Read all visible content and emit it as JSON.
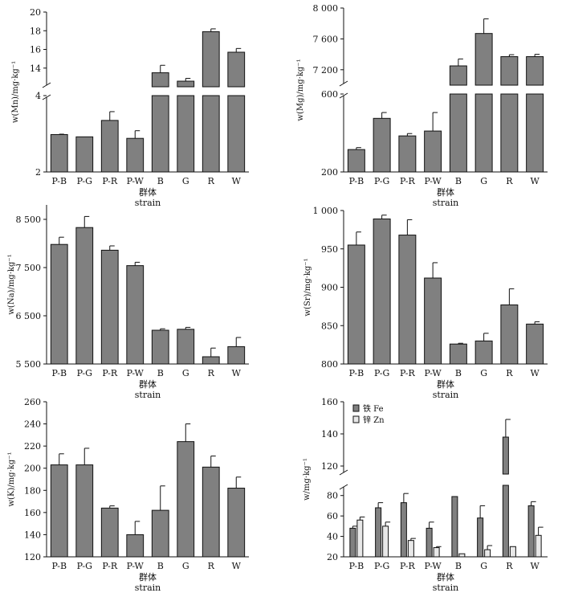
{
  "chart_data": [
    {
      "type": "bar",
      "ylabel": "w(Mn)/mg·kg⁻¹",
      "xlabel_zh": "群体",
      "xlabel_en": "strain",
      "categories": [
        "P-B",
        "P-G",
        "P-R",
        "P-W",
        "B",
        "G",
        "R",
        "W"
      ],
      "values": [
        2.98,
        2.92,
        3.35,
        2.88,
        13.5,
        12.6,
        17.9,
        15.7
      ],
      "errors": [
        0.01,
        0.0,
        0.23,
        0.2,
        0.8,
        0.3,
        0.3,
        0.4
      ],
      "axis_break": true,
      "lower_ylim": [
        2,
        4
      ],
      "upper_ylim": [
        12,
        20
      ],
      "lower_ticks": [
        "2",
        "4"
      ],
      "upper_ticks": [
        "14",
        "16",
        "18",
        "20"
      ]
    },
    {
      "type": "bar",
      "ylabel": "w(Mg)/mg·kg⁻¹",
      "xlabel_zh": "群体",
      "xlabel_en": "strain",
      "categories": [
        "P-B",
        "P-G",
        "P-R",
        "P-W",
        "B",
        "G",
        "R",
        "W"
      ],
      "values": [
        315,
        475,
        385,
        410,
        7250,
        7670,
        7370,
        7370
      ],
      "errors": [
        10,
        30,
        12,
        95,
        90,
        190,
        25,
        30
      ],
      "axis_break": true,
      "lower_ylim": [
        200,
        600
      ],
      "upper_ylim": [
        7000,
        8000
      ],
      "lower_ticks": [
        "200",
        "600"
      ],
      "upper_ticks": [
        "7 200",
        "7 600",
        "8 000"
      ]
    },
    {
      "type": "bar",
      "ylabel": "w(Na)/mg·kg⁻¹",
      "xlabel_zh": "群体",
      "xlabel_en": "strain",
      "categories": [
        "P-B",
        "P-G",
        "P-R",
        "P-W",
        "B",
        "G",
        "R",
        "W"
      ],
      "values": [
        7980,
        8330,
        7860,
        7540,
        6200,
        6220,
        5650,
        5860
      ],
      "errors": [
        150,
        230,
        90,
        70,
        30,
        40,
        180,
        190
      ],
      "ylim": [
        5500,
        8800
      ],
      "yticks": [
        5500,
        6500,
        7500,
        8500
      ],
      "ytick_labels": [
        "5 500",
        "6 500",
        "7 500",
        "8 500"
      ]
    },
    {
      "type": "bar",
      "ylabel": "w(Sr)/mg·kg⁻¹",
      "xlabel_zh": "群体",
      "xlabel_en": "strain",
      "categories": [
        "P-B",
        "P-G",
        "P-R",
        "P-W",
        "B",
        "G",
        "R",
        "W"
      ],
      "values": [
        955,
        989,
        968,
        912,
        826,
        830,
        877,
        852
      ],
      "errors": [
        17,
        5,
        20,
        20,
        1,
        10,
        21,
        3
      ],
      "ylim": [
        800,
        1000
      ],
      "yticks": [
        800,
        850,
        900,
        950,
        1000
      ],
      "ytick_labels": [
        "800",
        "850",
        "900",
        "950",
        "1 000"
      ]
    },
    {
      "type": "bar",
      "ylabel": "w(K)/mg·kg⁻¹",
      "xlabel_zh": "群体",
      "xlabel_en": "strain",
      "categories": [
        "P-B",
        "P-G",
        "P-R",
        "P-W",
        "B",
        "G",
        "R",
        "W"
      ],
      "values": [
        203,
        203,
        164,
        140,
        162,
        224,
        201,
        182
      ],
      "errors": [
        10,
        15,
        2,
        12,
        22,
        16,
        10,
        10
      ],
      "ylim": [
        120,
        260
      ],
      "yticks": [
        120,
        140,
        160,
        180,
        200,
        220,
        240,
        260
      ],
      "ytick_labels": [
        "120",
        "140",
        "160",
        "180",
        "200",
        "220",
        "240",
        "260"
      ]
    },
    {
      "type": "bar",
      "ylabel": "w/mg·kg⁻¹",
      "xlabel_zh": "群体",
      "xlabel_en": "strain",
      "categories": [
        "P-B",
        "P-G",
        "P-R",
        "P-W",
        "B",
        "G",
        "R",
        "W"
      ],
      "axis_break": true,
      "lower_ylim": [
        20,
        90
      ],
      "upper_ylim": [
        115,
        160
      ],
      "lower_ticks": [
        "20",
        "40",
        "60",
        "80"
      ],
      "upper_ticks": [
        "120",
        "140",
        "160"
      ],
      "series": [
        {
          "name": "铁 Fe",
          "color": "#808080",
          "values": [
            48,
            68,
            73,
            48,
            79,
            58,
            138,
            70
          ],
          "errors": [
            2,
            5,
            9,
            6,
            0,
            12,
            11,
            4
          ]
        },
        {
          "name": "锌 Zn",
          "color": "#e8e8e8",
          "values": [
            56,
            50,
            36,
            29,
            23,
            27,
            30,
            41
          ],
          "errors": [
            3,
            4,
            2,
            1,
            0,
            4,
            0,
            8
          ]
        }
      ]
    }
  ],
  "colors": {
    "bar": "#808080",
    "bar_light": "#e8e8e8",
    "axis": "#111111"
  }
}
